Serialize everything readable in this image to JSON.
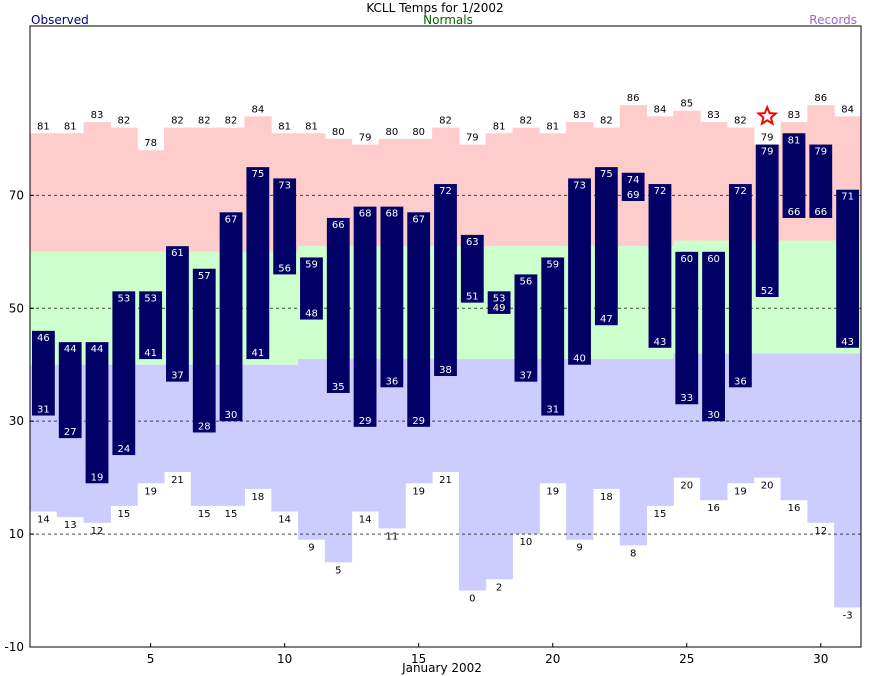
{
  "chart_data": {
    "type": "bar",
    "title": "KCLL Temps for 1/2002",
    "xlabel": "January 2002",
    "ylabel": "",
    "legend": {
      "observed": "Observed",
      "normals": "Normals",
      "records": "Records"
    },
    "colors": {
      "observed": "#000066",
      "observed_label": "#000080",
      "normals_label": "#006400",
      "records_label": "#9966cc",
      "record_high_band": "#ffcccc",
      "normal_band": "#ccffcc",
      "record_low_band": "#ccccff",
      "star": "#ff0000",
      "gridline": "#000000"
    },
    "ylim": [
      -10,
      100
    ],
    "y_ticks": [
      -10,
      10,
      30,
      50,
      70
    ],
    "x_ticks": [
      5,
      10,
      15,
      20,
      25,
      30
    ],
    "gridlines": [
      10,
      30,
      50,
      70
    ],
    "days": [
      1,
      2,
      3,
      4,
      5,
      6,
      7,
      8,
      9,
      10,
      11,
      12,
      13,
      14,
      15,
      16,
      17,
      18,
      19,
      20,
      21,
      22,
      23,
      24,
      25,
      26,
      27,
      28,
      29,
      30,
      31
    ],
    "series": [
      {
        "name": "Observed high",
        "values": [
          46,
          44,
          44,
          53,
          53,
          61,
          57,
          67,
          75,
          73,
          59,
          66,
          68,
          68,
          67,
          72,
          63,
          53,
          56,
          59,
          73,
          75,
          74,
          72,
          60,
          60,
          72,
          79,
          81,
          79,
          71
        ]
      },
      {
        "name": "Observed low",
        "values": [
          31,
          27,
          19,
          24,
          41,
          37,
          28,
          30,
          41,
          56,
          48,
          35,
          29,
          36,
          29,
          38,
          51,
          49,
          37,
          31,
          40,
          47,
          69,
          43,
          33,
          30,
          36,
          52,
          66,
          66,
          43
        ]
      },
      {
        "name": "Normal high",
        "values": [
          60,
          60,
          60,
          60,
          60,
          60,
          60,
          60,
          60,
          60,
          61,
          61,
          61,
          61,
          61,
          61,
          61,
          61,
          61,
          61,
          61,
          61,
          61,
          61,
          62,
          62,
          62,
          62,
          62,
          62,
          62
        ]
      },
      {
        "name": "Normal low",
        "values": [
          40,
          40,
          40,
          40,
          40,
          40,
          40,
          40,
          40,
          40,
          41,
          41,
          41,
          41,
          41,
          41,
          41,
          41,
          41,
          41,
          41,
          41,
          41,
          41,
          42,
          42,
          42,
          42,
          42,
          42,
          42
        ]
      },
      {
        "name": "Record high",
        "values": [
          81,
          81,
          83,
          82,
          78,
          82,
          82,
          82,
          84,
          81,
          81,
          80,
          79,
          80,
          80,
          82,
          79,
          81,
          82,
          81,
          83,
          82,
          86,
          84,
          85,
          83,
          82,
          79,
          83,
          86,
          84
        ]
      },
      {
        "name": "Record low",
        "values": [
          14,
          13,
          12,
          15,
          19,
          21,
          15,
          15,
          18,
          14,
          9,
          5,
          14,
          11,
          19,
          21,
          0,
          2,
          10,
          19,
          9,
          18,
          8,
          15,
          20,
          16,
          19,
          20,
          16,
          12,
          -3
        ]
      }
    ],
    "annotations": [
      {
        "type": "star",
        "day": 28,
        "value": 84,
        "meaning": "record high tied or broken"
      }
    ]
  }
}
